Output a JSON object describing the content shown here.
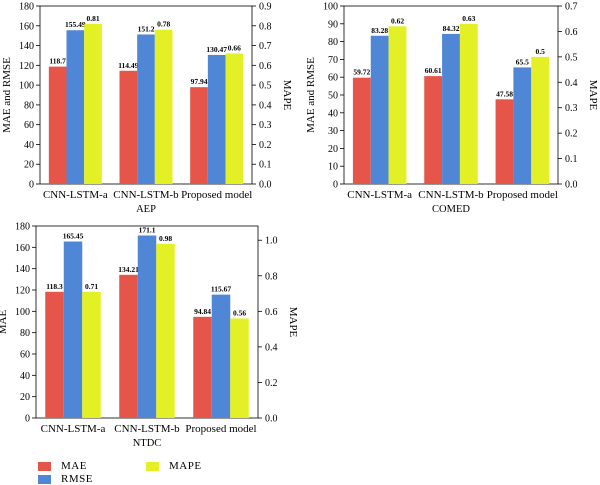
{
  "colors": {
    "MAE": "#E5554A",
    "RMSE": "#4F87D6",
    "MAPE": "#E3F025"
  },
  "legend": {
    "items": [
      {
        "key": "MAE",
        "label": "MAE"
      },
      {
        "key": "RMSE",
        "label": "RMSE"
      },
      {
        "key": "MAPE",
        "label": "MAPE"
      }
    ]
  },
  "chart_data": [
    {
      "type": "bar",
      "xlabel": "AEP",
      "ylabel_left": "MAE and RMSE",
      "ylabel_right": "MAPE",
      "categories": [
        "CNN-LSTM-a",
        "CNN-LSTM-b",
        "Proposed model"
      ],
      "ylim_left": [
        0,
        180
      ],
      "yticks_left": [
        "0",
        "20",
        "40",
        "60",
        "80",
        "100",
        "120",
        "140",
        "160",
        "180"
      ],
      "ylim_right": [
        0,
        0.9
      ],
      "yticks_right": [
        "0.0",
        "0.1",
        "0.2",
        "0.3",
        "0.4",
        "0.5",
        "0.6",
        "0.7",
        "0.8",
        "0.9"
      ],
      "series": [
        {
          "name": "MAE",
          "axis": "left",
          "values": [
            118.7,
            114.49,
            97.94
          ],
          "labels": [
            "118.7",
            "114.49",
            "97.94"
          ]
        },
        {
          "name": "RMSE",
          "axis": "left",
          "values": [
            155.49,
            151.2,
            130.47
          ],
          "labels": [
            "155.49",
            "151.2",
            "130.47"
          ]
        },
        {
          "name": "MAPE",
          "axis": "right",
          "values": [
            0.81,
            0.78,
            0.66
          ],
          "labels": [
            "0.81",
            "0.78",
            "0.66"
          ]
        }
      ]
    },
    {
      "type": "bar",
      "xlabel": "COMED",
      "ylabel_left": "MAE and RMSE",
      "ylabel_right": "MAPE",
      "categories": [
        "CNN-LSTM-a",
        "CNN-LSTM-b",
        "Proposed model"
      ],
      "ylim_left": [
        0,
        100
      ],
      "yticks_left": [
        "0",
        "10",
        "20",
        "30",
        "40",
        "50",
        "60",
        "70",
        "80",
        "90",
        "100"
      ],
      "ylim_right": [
        0,
        0.7
      ],
      "yticks_right": [
        "0.0",
        "0.1",
        "0.2",
        "0.3",
        "0.4",
        "0.5",
        "0.6",
        "0.7"
      ],
      "series": [
        {
          "name": "MAE",
          "axis": "left",
          "values": [
            59.72,
            60.61,
            47.58
          ],
          "labels": [
            "59.72",
            "60.61",
            "47.58"
          ]
        },
        {
          "name": "RMSE",
          "axis": "left",
          "values": [
            83.28,
            84.32,
            65.5
          ],
          "labels": [
            "83.28",
            "84.32",
            "65.5"
          ]
        },
        {
          "name": "MAPE",
          "axis": "right",
          "values": [
            0.62,
            0.63,
            0.5
          ],
          "labels": [
            "0.62",
            "0.63",
            "0.5"
          ]
        }
      ]
    },
    {
      "type": "bar",
      "xlabel": "NTDC",
      "ylabel_left": "MAE",
      "ylabel_right": "MAPE",
      "categories": [
        "CNN-LSTM-a",
        "CNN-LSTM-b",
        "Proposed model"
      ],
      "ylim_left": [
        0,
        180
      ],
      "yticks_left": [
        "0",
        "20",
        "40",
        "60",
        "80",
        "100",
        "120",
        "140",
        "160",
        "180"
      ],
      "ylim_right": [
        0,
        1.08
      ],
      "yticks_right": [
        "0.0",
        "0.2",
        "0.4",
        "0.6",
        "0.8",
        "1.0"
      ],
      "series": [
        {
          "name": "MAE",
          "axis": "left",
          "values": [
            118.3,
            134.21,
            94.84
          ],
          "labels": [
            "118.3",
            "134.21",
            "94.84"
          ]
        },
        {
          "name": "RMSE",
          "axis": "left",
          "values": [
            165.45,
            171.1,
            115.67
          ],
          "labels": [
            "165.45",
            "171.1",
            "115.67"
          ]
        },
        {
          "name": "MAPE",
          "axis": "right",
          "values": [
            0.71,
            0.98,
            0.56
          ],
          "labels": [
            "0.71",
            "0.98",
            "0.56"
          ]
        }
      ]
    }
  ]
}
